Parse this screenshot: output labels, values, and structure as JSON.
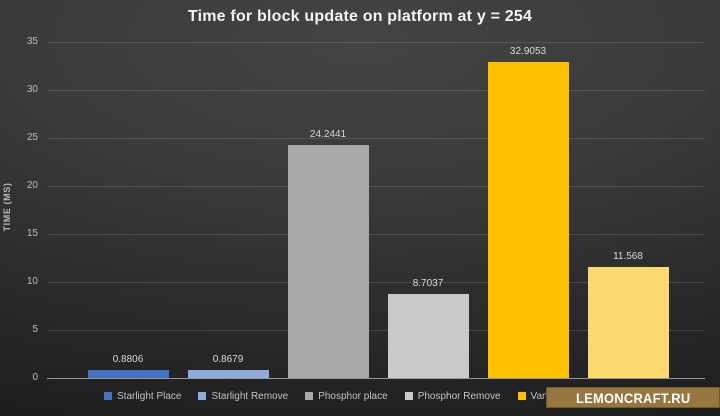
{
  "title": "Time for block update on platform at y = 254",
  "chart_data": {
    "type": "bar",
    "title": "Time for block update on platform at y = 254",
    "xlabel": "",
    "ylabel": "TIME (MS)",
    "ylim": [
      0,
      35
    ],
    "yticks": [
      0,
      5,
      10,
      15,
      20,
      25,
      30,
      35
    ],
    "grid": true,
    "legend_position": "bottom",
    "categories": [
      "Starlight Place",
      "Starlight Remove",
      "Phosphor place",
      "Phosphor Remove",
      "Vanilla place",
      ""
    ],
    "values": [
      0.8806,
      0.8679,
      24.2441,
      8.7037,
      32.9053,
      11.568
    ],
    "value_labels": [
      "0.8806",
      "0.8679",
      "24.2441",
      "8.7037",
      "32.9053",
      "11.568"
    ],
    "colors": [
      "#4472C4",
      "#8FAADC",
      "#A9A9A9",
      "#C9C9C9",
      "#FFC000",
      "#FBD96E"
    ]
  },
  "legend": {
    "items": [
      {
        "label": "Starlight Place",
        "color": "#4472C4"
      },
      {
        "label": "Starlight Remove",
        "color": "#8FAADC"
      },
      {
        "label": "Phosphor place",
        "color": "#A9A9A9"
      },
      {
        "label": "Phosphor Remove",
        "color": "#C9C9C9"
      },
      {
        "label": "Vanilla place",
        "color": "#FFC000"
      },
      {
        "label": "",
        "color": "#FBD96E"
      }
    ]
  },
  "watermark": {
    "text": "LEMONCRAFT.RU",
    "bg": "#97763F",
    "fg": "#FFFFFF"
  }
}
